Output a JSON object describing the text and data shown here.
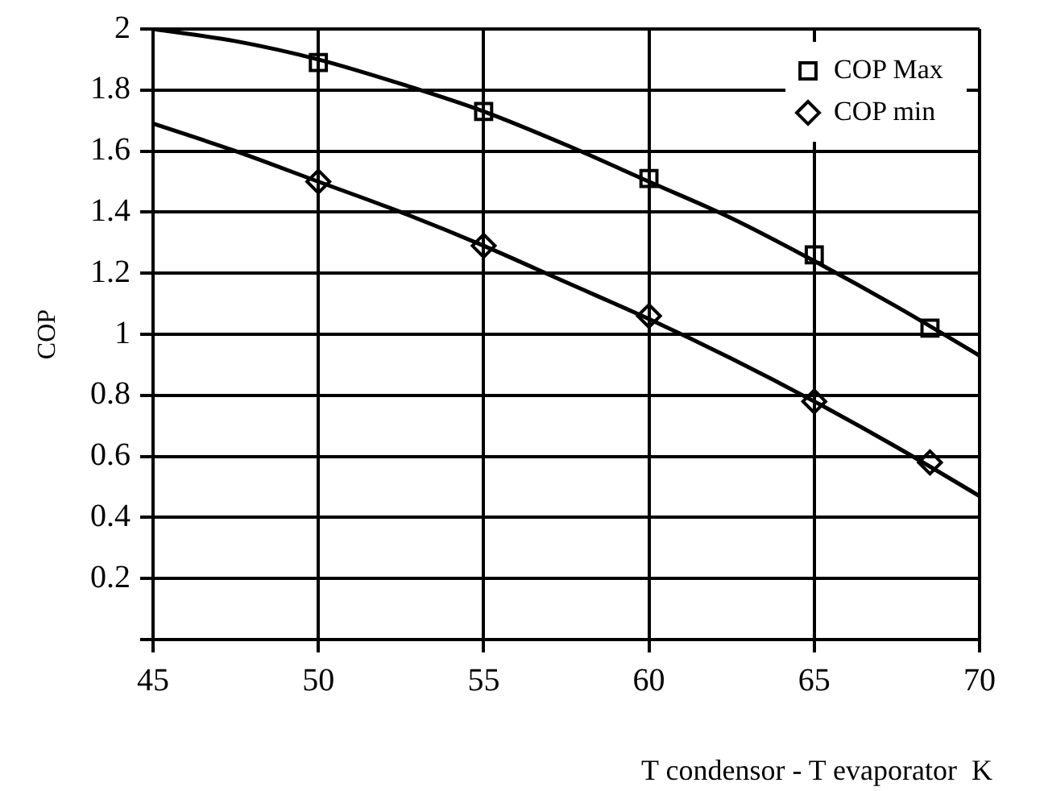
{
  "chart_data": {
    "type": "scatter",
    "xlabel": "T condensor - T evaporator  K",
    "ylabel": "COP",
    "xlim": [
      45,
      70
    ],
    "xticks": [
      45,
      50,
      55,
      60,
      65,
      70
    ],
    "ylim": [
      0,
      2
    ],
    "yticks": [
      {
        "value": 0,
        "label": null
      },
      0.2,
      0.4,
      0.6,
      0.8,
      1,
      1.2,
      1.4,
      1.6,
      1.8,
      2
    ],
    "grid": true,
    "legend": "top right",
    "series": [
      {
        "name": "COP Max",
        "color": "#000000",
        "marker": "square",
        "x": [
          50,
          55,
          60,
          65,
          68.5
        ],
        "values": [
          1.89,
          1.73,
          1.51,
          1.26,
          1.02
        ]
      },
      {
        "name": "COP min",
        "color": "#000000",
        "marker": "diamond",
        "x": [
          50,
          55,
          60,
          65,
          68.5
        ],
        "values": [
          1.5,
          1.29,
          1.06,
          0.78,
          0.58
        ]
      },
      {
        "type": "line",
        "color": "#000000",
        "marker": "none",
        "x": [
          45,
          47.5,
          50,
          52.5,
          55,
          57.5,
          60,
          62.5,
          65,
          67.5,
          70
        ],
        "values": [
          2.0,
          1.96,
          1.9,
          1.82,
          1.73,
          1.62,
          1.5,
          1.38,
          1.24,
          1.09,
          0.93
        ]
      },
      {
        "type": "line",
        "color": "#000000",
        "marker": "none",
        "x": [
          45,
          47.5,
          50,
          52.5,
          55,
          57.5,
          60,
          62.5,
          65,
          67.5,
          70
        ],
        "values": [
          1.69,
          1.6,
          1.5,
          1.4,
          1.29,
          1.17,
          1.05,
          0.92,
          0.78,
          0.63,
          0.47
        ]
      }
    ]
  }
}
